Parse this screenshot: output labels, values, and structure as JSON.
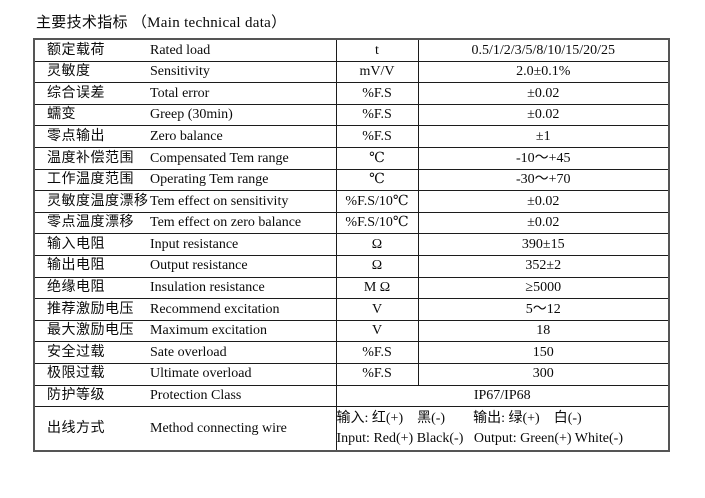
{
  "title": "主要技术指标 （Main technical data）",
  "table": {
    "rows": [
      {
        "cn": "额定载荷",
        "en": "Rated load",
        "unit": "t",
        "value": "0.5/1/2/3/5/8/10/15/20/25"
      },
      {
        "cn": "灵敏度",
        "en": "Sensitivity",
        "unit": "mV/V",
        "value": "2.0±0.1%"
      },
      {
        "cn": "综合误差",
        "en": "Total error",
        "unit": "%F.S",
        "value": "±0.02"
      },
      {
        "cn": "蠕变",
        "en": "Greep (30min)",
        "unit": "%F.S",
        "value": "±0.02"
      },
      {
        "cn": "零点输出",
        "en": "Zero balance",
        "unit": "%F.S",
        "value": "±1"
      },
      {
        "cn": "温度补偿范围",
        "en": "Compensated Tem range",
        "unit": "℃",
        "value": "-10～+45"
      },
      {
        "cn": "工作温度范围",
        "en": "Operating Tem range",
        "unit": "℃",
        "value": "-30～+70"
      },
      {
        "cn": "灵敏度温度漂移",
        "en": "Tem effect on sensitivity",
        "unit": "%F.S/10℃",
        "value": "±0.02"
      },
      {
        "cn": "零点温度漂移",
        "en": "Tem effect on zero balance",
        "unit": "%F.S/10℃",
        "value": "±0.02"
      },
      {
        "cn": "输入电阻",
        "en": "Input resistance",
        "unit": "Ω",
        "value": "390±15"
      },
      {
        "cn": "输出电阻",
        "en": "Output resistance",
        "unit": "Ω",
        "value": "352±2"
      },
      {
        "cn": "绝缘电阻",
        "en": "Insulation resistance",
        "unit": "M Ω",
        "value": "≥5000"
      },
      {
        "cn": "推荐激励电压",
        "en": "Recommend excitation",
        "unit": "V",
        "value": "5～12"
      },
      {
        "cn": "最大激励电压",
        "en": "Maximum excitation",
        "unit": "V",
        "value": "18"
      },
      {
        "cn": "安全过载",
        "en": "Sate overload",
        "unit": "%F.S",
        "value": "150"
      },
      {
        "cn": "极限过载",
        "en": "Ultimate overload",
        "unit": "%F.S",
        "value": "300"
      },
      {
        "cn": "防护等级",
        "en": "Protection Class",
        "merged": true,
        "value": "IP67/IP68"
      },
      {
        "cn": "出线方式",
        "en": "Method connecting wire",
        "merged": true,
        "tall": true,
        "lines": [
          "输入: 红(+)　黑(-)　　输出: 绿(+)　白(-)",
          "Input: Red(+) Black(-)   Output: Green(+) White(-)"
        ]
      }
    ]
  }
}
